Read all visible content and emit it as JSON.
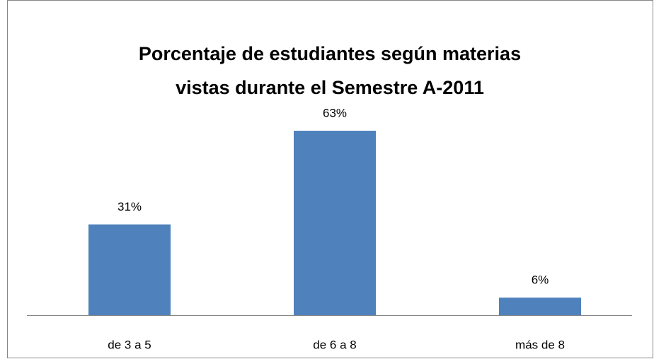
{
  "chart_data": {
    "type": "bar",
    "title": "Porcentaje de estudiantes según materias\nvistas durante el Semestre A-2011",
    "categories": [
      "de 3 a 5",
      "de 6 a 8",
      "más de 8"
    ],
    "values": [
      31,
      63,
      6
    ],
    "value_labels": [
      "31%",
      "63%",
      "6%"
    ],
    "color": "#4f81bd"
  }
}
